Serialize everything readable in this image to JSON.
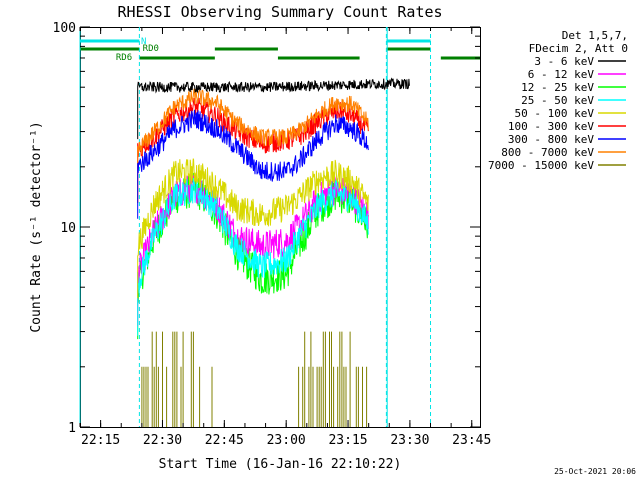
{
  "chart_data": {
    "type": "line",
    "title": "RHESSI Observing Summary Count Rates",
    "xlabel": "Start Time (16-Jan-16 22:10:22)",
    "ylabel": "Count Rate (s⁻¹ detector⁻¹)",
    "yscale": "log",
    "ylim": [
      1,
      100
    ],
    "xlim_minutes": [
      0,
      97
    ],
    "x_ticks": [
      "22:15",
      "22:30",
      "22:45",
      "23:00",
      "23:15",
      "23:30",
      "23:45"
    ],
    "y_ticks": [
      "1",
      "10",
      "100"
    ],
    "grid": false,
    "legend_placement": "right",
    "legend_header": [
      "Det 1,5,7,",
      "FDecim 2, Att 0"
    ],
    "timestamp": "25-Oct-2021 20:06",
    "flags": [
      {
        "name": "N",
        "color": "#00e5e5"
      },
      {
        "name": "RD0",
        "color": "#008000"
      },
      {
        "name": "RD6",
        "color": "#008000"
      }
    ],
    "series": [
      {
        "name": "3 - 6 keV",
        "color": "#000000",
        "points": [
          [
            14,
            50
          ],
          [
            20,
            50
          ],
          [
            30,
            50
          ],
          [
            45,
            50
          ],
          [
            60,
            51
          ],
          [
            72,
            52
          ],
          [
            80,
            52
          ]
        ]
      },
      {
        "name": "6 - 12 keV",
        "color": "#ff00ff",
        "points": [
          [
            14,
            5.8
          ],
          [
            18,
            9.5
          ],
          [
            23,
            14.5
          ],
          [
            28,
            16
          ],
          [
            33,
            13
          ],
          [
            38,
            9
          ],
          [
            44,
            8
          ],
          [
            50,
            8.5
          ],
          [
            53,
            10
          ],
          [
            58,
            14
          ],
          [
            62,
            15.5
          ],
          [
            66,
            14.5
          ],
          [
            70,
            11.5
          ]
        ]
      },
      {
        "name": "12 - 25 keV",
        "color": "#00ff00",
        "points": [
          [
            14,
            5
          ],
          [
            18,
            9
          ],
          [
            23,
            14
          ],
          [
            28,
            15.5
          ],
          [
            33,
            12
          ],
          [
            38,
            7.5
          ],
          [
            44,
            5.5
          ],
          [
            50,
            5.8
          ],
          [
            53,
            8
          ],
          [
            58,
            12.5
          ],
          [
            62,
            14.5
          ],
          [
            66,
            13.5
          ],
          [
            70,
            10
          ]
        ]
      },
      {
        "name": "25 - 50 keV",
        "color": "#00ffff",
        "points": [
          [
            14,
            5.2
          ],
          [
            18,
            9
          ],
          [
            23,
            14.2
          ],
          [
            28,
            15.5
          ],
          [
            33,
            12.5
          ],
          [
            38,
            8
          ],
          [
            44,
            6.3
          ],
          [
            50,
            6.8
          ],
          [
            53,
            9
          ],
          [
            58,
            13
          ],
          [
            62,
            14.8
          ],
          [
            66,
            13.8
          ],
          [
            70,
            10.3
          ]
        ]
      },
      {
        "name": "50 - 100 keV",
        "color": "#d8d800",
        "points": [
          [
            14,
            8
          ],
          [
            18,
            13
          ],
          [
            23,
            18.5
          ],
          [
            28,
            19
          ],
          [
            33,
            16
          ],
          [
            38,
            12.5
          ],
          [
            44,
            11.5
          ],
          [
            50,
            12.5
          ],
          [
            53,
            14
          ],
          [
            58,
            17.5
          ],
          [
            62,
            18.5
          ],
          [
            66,
            17
          ],
          [
            70,
            13
          ]
        ]
      },
      {
        "name": "100 - 300 keV",
        "color": "#ff0000",
        "points": [
          [
            14,
            24
          ],
          [
            18,
            28
          ],
          [
            23,
            36
          ],
          [
            28,
            40
          ],
          [
            33,
            36
          ],
          [
            38,
            30
          ],
          [
            44,
            26
          ],
          [
            50,
            27
          ],
          [
            53,
            28
          ],
          [
            58,
            34
          ],
          [
            62,
            38
          ],
          [
            66,
            36
          ],
          [
            70,
            30
          ]
        ]
      },
      {
        "name": "300 - 800 keV",
        "color": "#0000ff",
        "points": [
          [
            14,
            20
          ],
          [
            18,
            24
          ],
          [
            23,
            31
          ],
          [
            28,
            35
          ],
          [
            33,
            31
          ],
          [
            38,
            25
          ],
          [
            44,
            19
          ],
          [
            50,
            19
          ],
          [
            53,
            21
          ],
          [
            58,
            28
          ],
          [
            62,
            33
          ],
          [
            66,
            31
          ],
          [
            70,
            26
          ]
        ]
      },
      {
        "name": "800 - 7000 keV",
        "color": "#ff8000",
        "points": [
          [
            14,
            24
          ],
          [
            18,
            30
          ],
          [
            23,
            40
          ],
          [
            28,
            45
          ],
          [
            33,
            42
          ],
          [
            38,
            33
          ],
          [
            44,
            28
          ],
          [
            50,
            28
          ],
          [
            53,
            30
          ],
          [
            58,
            37
          ],
          [
            62,
            42
          ],
          [
            66,
            41
          ],
          [
            70,
            33
          ]
        ]
      },
      {
        "name": "7000 - 15000 keV",
        "color": "#808000",
        "points": [
          [
            14,
            1
          ],
          [
            18,
            1.6
          ],
          [
            23,
            2
          ],
          [
            28,
            1.4
          ],
          [
            33,
            1
          ],
          [
            38,
            1
          ],
          [
            44,
            1
          ],
          [
            50,
            1
          ],
          [
            53,
            1.2
          ],
          [
            58,
            2
          ],
          [
            62,
            2.2
          ],
          [
            66,
            1.6
          ],
          [
            70,
            1
          ]
        ]
      }
    ]
  }
}
